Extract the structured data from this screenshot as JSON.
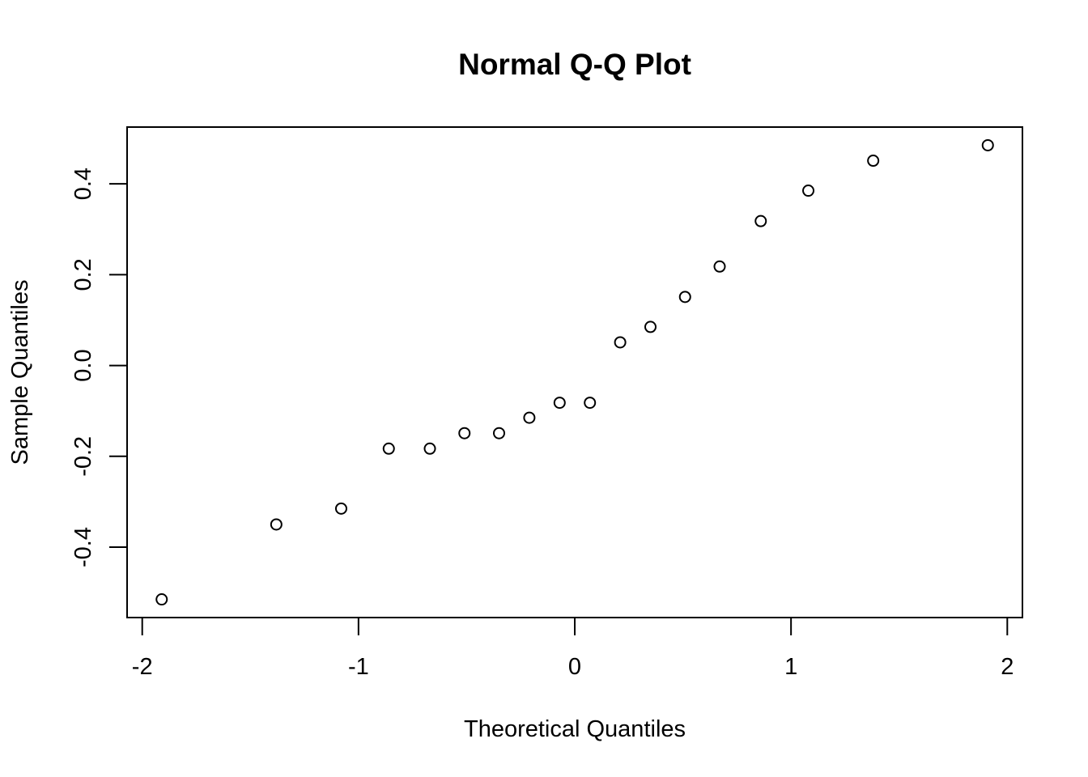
{
  "chart_data": {
    "type": "scatter",
    "title": "Normal Q-Q Plot",
    "xlabel": "Theoretical Quantiles",
    "ylabel": "Sample Quantiles",
    "xlim": [
      -2.07,
      2.07
    ],
    "ylim": [
      -0.555,
      0.525
    ],
    "x_ticks": [
      -2,
      -1,
      0,
      1,
      2
    ],
    "x_tick_labels": [
      "-2",
      "-1",
      "0",
      "1",
      "2"
    ],
    "y_ticks": [
      -0.4,
      -0.2,
      0.0,
      0.2,
      0.4
    ],
    "y_tick_labels": [
      "-0.4",
      "-0.2",
      "0.0",
      "0.2",
      "0.4"
    ],
    "grid": false,
    "legend": "none",
    "point_style": "open-circle",
    "series": [
      {
        "x": [
          -1.91,
          -1.38,
          -1.08,
          -0.86,
          -0.67,
          -0.51,
          -0.35,
          -0.21,
          -0.07,
          0.07,
          0.21,
          0.35,
          0.51,
          0.67,
          0.86,
          1.08,
          1.38,
          1.91
        ],
        "y": [
          -0.515,
          -0.35,
          -0.315,
          -0.183,
          -0.183,
          -0.149,
          -0.149,
          -0.115,
          -0.082,
          -0.082,
          0.051,
          0.085,
          0.151,
          0.218,
          0.318,
          0.385,
          0.451,
          0.485
        ]
      }
    ]
  }
}
